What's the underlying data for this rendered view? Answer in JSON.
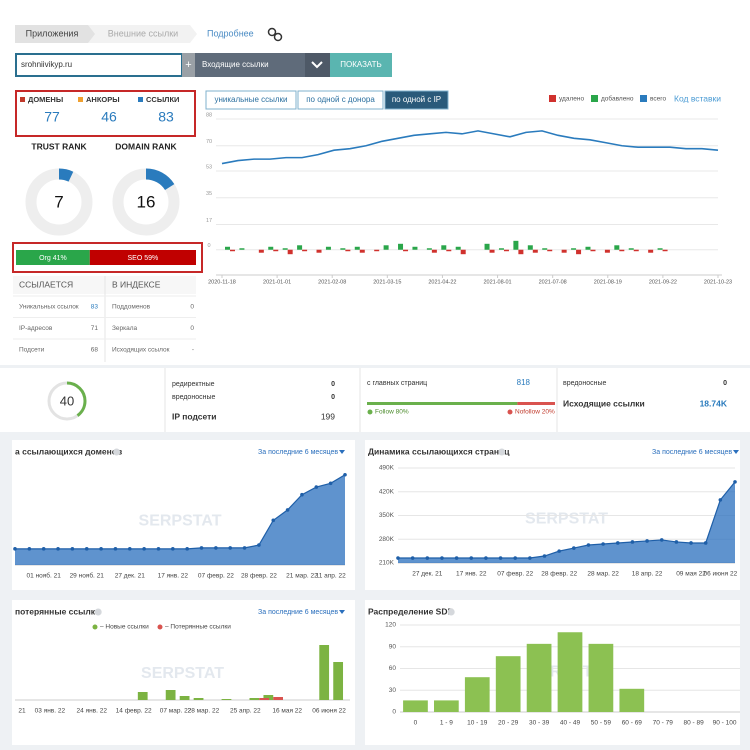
{
  "tabs": [
    "Приложения",
    "Внешние ссылки"
  ],
  "details_link": "Подробнее",
  "search": {
    "domain": "srohniivikyp.ru",
    "plus": "+",
    "mode": "Входящие ссылки",
    "button": "ПОКАЗАТЬ"
  },
  "summary": [
    {
      "label": "ДОМЕНЫ",
      "value": 77,
      "color": "#c0392b"
    },
    {
      "label": "АНКОРЫ",
      "value": 46,
      "color": "#f0a030"
    },
    {
      "label": "ССЫЛКИ",
      "value": 83,
      "color": "#2a7bbd"
    }
  ],
  "ranks": [
    {
      "label": "TRUST RANK",
      "value": 7
    },
    {
      "label": "DOMAIN RANK",
      "value": 16
    }
  ],
  "org_seo": [
    {
      "label": "Org 41%",
      "value": 41,
      "color": "#2aa64a"
    },
    {
      "label": "SEO 59%",
      "value": 59,
      "color": "#c00000"
    }
  ],
  "index_table": {
    "headers": [
      "ССЫЛАЕТСЯ",
      "В ИНДЕКСЕ"
    ],
    "rows": [
      [
        "Уникальных ссылок",
        "83",
        "Поддоменов",
        "0"
      ],
      [
        "IP-адресов",
        "71",
        "Зеркала",
        "0"
      ],
      [
        "Подсети",
        "68",
        "Исходящих ссылок",
        "-"
      ]
    ]
  },
  "history_chart": {
    "type": "bar-line",
    "buttons": [
      "уникальные ссылки",
      "по одной с донора",
      "по одной с IP"
    ],
    "embed_link": "Код вставки",
    "ylim": [
      -17,
      88
    ],
    "yticks": [
      0,
      17,
      35,
      53,
      70,
      88
    ],
    "date_labels": [
      "2020-11-18",
      "2021-01-01",
      "2021-02-08",
      "2021-03-15",
      "2021-04-22",
      "2021-08-01",
      "2021-07-08",
      "2021-08-19",
      "2021-09-22",
      "2021-10-23"
    ],
    "series": [
      {
        "name": "удалено",
        "color": "#d0312d",
        "type": "bar",
        "values": [
          -1,
          0,
          -2,
          -1,
          -3,
          -1,
          -2,
          0,
          -1,
          -2,
          -1,
          0,
          -1,
          0,
          -2,
          -1,
          -3,
          0,
          -2,
          -1,
          -3,
          -2,
          -1,
          -2,
          -3,
          -1,
          -2,
          -1,
          -1,
          -2,
          -1,
          0
        ]
      },
      {
        "name": "добавлено",
        "color": "#2aa64a",
        "type": "bar",
        "values": [
          2,
          1,
          0,
          2,
          1,
          3,
          0,
          2,
          1,
          2,
          0,
          3,
          4,
          2,
          1,
          3,
          2,
          0,
          4,
          1,
          6,
          3,
          1,
          0,
          1,
          2,
          0,
          3,
          1,
          0,
          1,
          0
        ]
      },
      {
        "name": "всего",
        "color": "#2a7bbd",
        "type": "line",
        "values": [
          58,
          60,
          61,
          61,
          62,
          62,
          64,
          67,
          68,
          70,
          73,
          75,
          77,
          78,
          79,
          78,
          80,
          78,
          76,
          79,
          80,
          77,
          75,
          74,
          72,
          70,
          69,
          69,
          69,
          68,
          68,
          67
        ]
      }
    ]
  },
  "stats": {
    "score": 40,
    "items": [
      {
        "label": "редиректные",
        "value": 0
      },
      {
        "label": "вредоносные",
        "value": 0
      },
      {
        "label": "IP подсети",
        "value": 199
      }
    ],
    "pages_label": "с главных страниц",
    "pages_value": 818,
    "follow": [
      {
        "label": "Follow 80%",
        "value": 80,
        "color": "#6ab04c"
      },
      {
        "label": "Nofollow 20%",
        "value": 20,
        "color": "#d9534f"
      }
    ],
    "right": [
      {
        "label": "вредоносные",
        "value": "0"
      },
      {
        "label": "Исходящие ссылки",
        "value": "18.74K"
      }
    ]
  },
  "domains_chart": {
    "type": "area",
    "title": "а ссылающихся доменов",
    "period": "За последние 6 месяцев",
    "watermark": "SERPSTAT",
    "categories": [
      null,
      null,
      "01 нояб. 21",
      null,
      null,
      "29 нояб. 21",
      null,
      null,
      "27 дек. 21",
      null,
      null,
      "17 янв. 22",
      null,
      null,
      "07 февр. 22",
      null,
      null,
      "28 февр. 22",
      null,
      null,
      "21 мар. 22",
      null,
      "11 апр. 22",
      null
    ],
    "values": [
      17,
      17,
      17,
      17,
      17,
      17,
      17,
      17,
      17,
      17,
      17,
      17,
      17,
      18,
      18,
      18,
      18,
      21,
      47,
      58,
      74,
      82,
      86,
      95
    ],
    "color": "#2a6fbd",
    "ylim": [
      0,
      100
    ]
  },
  "pages_chart": {
    "type": "area",
    "title": "Динамика ссылающихся страниц",
    "period": "За последние 6 месяцев",
    "watermark": "SERPSTAT",
    "categories": [
      null,
      null,
      "27 дек. 21",
      null,
      null,
      "17 янв. 22",
      null,
      null,
      "07 февр. 22",
      null,
      null,
      "28 февр. 22",
      null,
      null,
      "28 мар. 22",
      null,
      null,
      "18 апр. 22",
      null,
      null,
      "09 мая 22",
      null,
      "06 июня 22",
      null
    ],
    "values": [
      224700,
      224700,
      224700,
      224700,
      224700,
      224700,
      224700,
      224700,
      224700,
      224700,
      230600,
      245000,
      254000,
      263000,
      266000,
      269000,
      272000,
      275000,
      278000,
      272000,
      269000,
      269000,
      396000,
      449000
    ],
    "color": "#2a6fbd",
    "ylim": [
      210000,
      490000
    ],
    "yticks": [
      {
        "value": 210000,
        "label": "210K"
      },
      {
        "value": 280000,
        "label": "280K"
      },
      {
        "value": 350000,
        "label": "350K"
      },
      {
        "value": 420000,
        "label": "420K"
      },
      {
        "value": 490000,
        "label": "490K"
      }
    ]
  },
  "lost_chart": {
    "type": "bar",
    "title": "потерянные ссылки",
    "period": "За последние 6 месяцев",
    "watermark": "SERPSTAT",
    "categories": [
      "21",
      null,
      "03 янв. 22",
      null,
      null,
      "24 янв. 22",
      null,
      null,
      "14 февр. 22",
      null,
      null,
      "07 мар. 22",
      null,
      "28 мар. 22",
      null,
      null,
      "25 апр. 22",
      null,
      null,
      "16 мая 22",
      null,
      null,
      "06 июня 22",
      null
    ],
    "ylim": [
      0,
      60
    ],
    "series": [
      {
        "name": "– Новые ссылки",
        "color": "#7cb342",
        "values": [
          0,
          0,
          0,
          0,
          0,
          0,
          0,
          0,
          0,
          8,
          0,
          10,
          4,
          2,
          0,
          1,
          0,
          2,
          5,
          0,
          0,
          0,
          55,
          38
        ]
      },
      {
        "name": "– Потерянные ссылки",
        "color": "#d9534f",
        "values": [
          0,
          0,
          0,
          0,
          0,
          0,
          0,
          0,
          0,
          0,
          0,
          0,
          0,
          0,
          0,
          0,
          0,
          2,
          3,
          0,
          0,
          0,
          0,
          0
        ]
      }
    ]
  },
  "sdr_chart": {
    "type": "bar",
    "title": "Распределение SDR",
    "watermark": "SERPSTAT",
    "categories": [
      "0",
      "1 - 9",
      "10 - 19",
      "20 - 29",
      "30 - 39",
      "40 - 49",
      "50 - 59",
      "60 - 69",
      "70 - 79",
      "80 - 89",
      "90 - 100"
    ],
    "values": [
      16,
      16,
      48,
      77,
      94,
      110,
      94,
      32,
      0,
      0,
      0
    ],
    "color": "#8cc152",
    "ylim": [
      0,
      120
    ],
    "yticks": [
      0,
      30,
      60,
      90,
      120
    ]
  }
}
